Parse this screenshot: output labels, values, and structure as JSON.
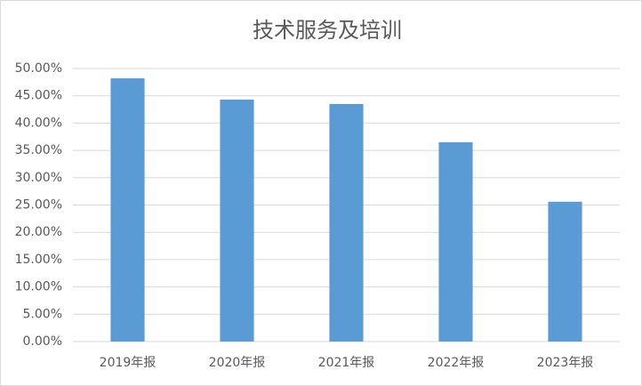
{
  "chart_data": {
    "type": "bar",
    "title": "技术服务及培训",
    "categories": [
      "2019年报",
      "2020年报",
      "2021年报",
      "2022年报",
      "2023年报"
    ],
    "values": [
      48.2,
      44.3,
      43.5,
      36.5,
      25.6
    ],
    "color": "#5b9bd5",
    "ylim": [
      0,
      50
    ],
    "yticks": [
      {
        "value": 0,
        "label": "0.00%"
      },
      {
        "value": 5,
        "label": "5.00%"
      },
      {
        "value": 10,
        "label": "10.00%"
      },
      {
        "value": 15,
        "label": "15.00%"
      },
      {
        "value": 20,
        "label": "20.00%"
      },
      {
        "value": 25,
        "label": "25.00%"
      },
      {
        "value": 30,
        "label": "30.00%"
      },
      {
        "value": 35,
        "label": "35.00%"
      },
      {
        "value": 40,
        "label": "40.00%"
      },
      {
        "value": 45,
        "label": "45.00%"
      },
      {
        "value": 50,
        "label": "50.00%"
      }
    ],
    "grid": true
  }
}
